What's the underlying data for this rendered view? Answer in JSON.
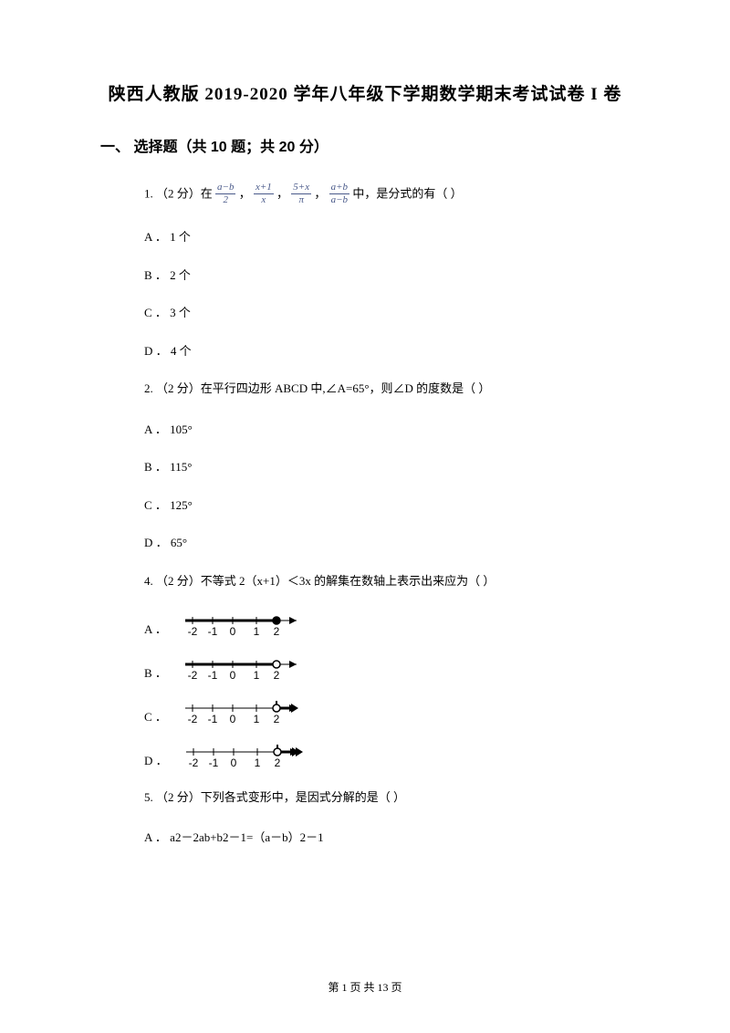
{
  "title": "陕西人教版 2019-2020 学年八年级下学期数学期末考试试卷 I 卷",
  "section": {
    "label": "一、 选择题（共 10 题；共 20 分）"
  },
  "questions": {
    "q1": {
      "stem_prefix": "1. （2 分）在 ",
      "frac1_num": "a−b",
      "frac1_den": "2",
      "sep": " ， ",
      "frac2_num": "x+1",
      "frac2_den": "x",
      "frac3_num": "5+x",
      "frac3_den": "π",
      "frac4_num": "a+b",
      "frac4_den": "a−b",
      "stem_suffix": " 中，是分式的有（    ）",
      "options": {
        "A": "A ． 1 个",
        "B": "B ． 2 个",
        "C": "C ． 3 个",
        "D": "D ． 4 个"
      }
    },
    "q2": {
      "stem": "2. （2 分）在平行四边形 ABCD 中,∠A=65°，则∠D 的度数是（    ）",
      "options": {
        "A": "A ． 105°",
        "B": "B ． 115°",
        "C": "C ． 125°",
        "D": "D ． 65°"
      }
    },
    "q4": {
      "stem": "4. （2 分）不等式 2（x+1）＜3x 的解集在数轴上表示出来应为（    ）",
      "options": {
        "A": "A ．",
        "B": "B ．",
        "C": "C ．",
        "D": "D ．"
      },
      "numberline": {
        "ticks": [
          "-2",
          "-1",
          "0",
          "1",
          "2"
        ],
        "width": 140,
        "height": 30,
        "tickColor": "#000000",
        "labelColor": "#000000",
        "labelFontSize": 12,
        "lineY": 8,
        "tickHeight": 5,
        "arrowFill": "#000000",
        "circleRadius": 4,
        "variants": {
          "A": {
            "boldFrom": 0,
            "boldTo": 110,
            "circleX": 110,
            "circleFill": "#000000",
            "circleStroke": "#000000",
            "arrowLeft": false
          },
          "B": {
            "boldFrom": 0,
            "boldTo": 110,
            "circleX": 110,
            "circleFill": "#ffffff",
            "circleStroke": "#000000",
            "arrowLeft": false
          },
          "C": {
            "boldFrom": 110,
            "boldTo": 135,
            "circleX": 110,
            "circleFill": "#ffffff",
            "circleStroke": "#000000",
            "arrowLeft": false,
            "bracket": "left"
          },
          "D": {
            "boldFrom": 110,
            "boldTo": 135,
            "circleX": 110,
            "circleFill": "#ffffff",
            "circleStroke": "#000000",
            "arrowLeft": false,
            "bracket": "left",
            "double": true
          }
        }
      }
    },
    "q5": {
      "stem": "5. （2 分）下列各式变形中，是因式分解的是（    ）",
      "options": {
        "A": "A ． a2－2ab+b2－1=（a－b）2－1"
      }
    }
  },
  "footer": {
    "prefix": "第 ",
    "page": "1",
    "middle": " 页 共 ",
    "total": "13",
    "suffix": " 页"
  },
  "colors": {
    "text": "#000000",
    "fracText": "#4a5a8a",
    "background": "#ffffff"
  }
}
